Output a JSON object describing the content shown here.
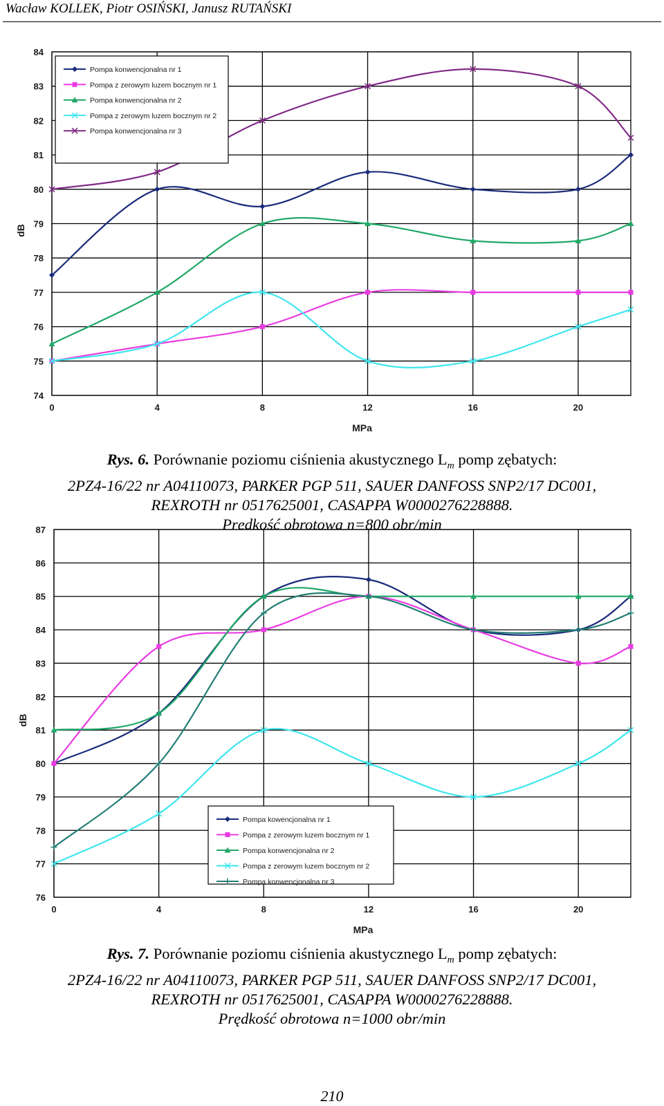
{
  "header": {
    "authors": "Wacław KOLLEK, Piotr OSIŃSKI, Janusz RUTAŃSKI"
  },
  "page_number": "210",
  "chart_data": [
    {
      "type": "line",
      "xlabel": "MPa",
      "ylabel": "dB",
      "x": [
        0,
        4,
        8,
        12,
        16,
        20,
        22
      ],
      "x_ticks": [
        0,
        4,
        8,
        12,
        16,
        20
      ],
      "xlim": [
        0,
        22
      ],
      "ylim": [
        74,
        84
      ],
      "y_ticks": [
        74,
        75,
        76,
        77,
        78,
        79,
        80,
        81,
        82,
        83,
        84
      ],
      "grid": true,
      "legend_position": "top-left",
      "series": [
        {
          "name": "Pompa konwencjonalna nr 1",
          "color": "#1a2a7a",
          "marker": "diamond",
          "values": [
            77.5,
            80,
            79.5,
            80.5,
            80,
            80,
            81
          ]
        },
        {
          "name": "Pompa z zerowym luzem bocznym nr 1",
          "color": "#e93be3",
          "marker": "square",
          "values": [
            75,
            75.5,
            76,
            77,
            77,
            77,
            77
          ]
        },
        {
          "name": "Pompa konwencjonalna nr 2",
          "color": "#1ea866",
          "marker": "triangle",
          "values": [
            75.5,
            77,
            79,
            79,
            78.5,
            78.5,
            79
          ]
        },
        {
          "name": "Pompa z zerowym luzem bocznym nr 2",
          "color": "#3ee6ee",
          "marker": "x",
          "values": [
            75,
            75.5,
            77,
            75,
            75,
            76,
            76.5
          ]
        },
        {
          "name": "Pompa konwencjonalna nr 3",
          "color": "#802a86",
          "marker": "x",
          "values": [
            80,
            80.5,
            82,
            83,
            83.5,
            83,
            81.5
          ]
        }
      ]
    },
    {
      "type": "line",
      "xlabel": "MPa",
      "ylabel": "dB",
      "x": [
        0,
        4,
        8,
        12,
        16,
        20,
        22
      ],
      "x_ticks": [
        0,
        4,
        8,
        12,
        16,
        20
      ],
      "xlim": [
        0,
        22
      ],
      "ylim": [
        76,
        87
      ],
      "y_ticks": [
        76,
        77,
        78,
        79,
        80,
        81,
        82,
        83,
        84,
        85,
        86,
        87
      ],
      "grid": true,
      "legend_position": "bottom-center",
      "series": [
        {
          "name": "Pompa kowencjonalna nr 1",
          "color": "#1a2a7a",
          "marker": "diamond",
          "values": [
            80,
            81.5,
            85,
            85.5,
            84,
            84,
            85
          ]
        },
        {
          "name": "Pompa z zerowym luzem bocznym nr 1",
          "color": "#e93be3",
          "marker": "square",
          "values": [
            80,
            83.5,
            84,
            85,
            84,
            83,
            83.5
          ]
        },
        {
          "name": "Pompa konwencjonalna nr 2",
          "color": "#1ea866",
          "marker": "triangle",
          "values": [
            81,
            81.5,
            85,
            85,
            85,
            85,
            85
          ]
        },
        {
          "name": "Pompa z zerowym luzem bocznym nr 2",
          "color": "#3ee6ee",
          "marker": "x",
          "values": [
            77,
            78.5,
            81,
            80,
            79,
            80,
            81
          ]
        },
        {
          "name": "Pompa konwencjonalna nr 3",
          "color": "#227e74",
          "marker": "plus",
          "values": [
            77.5,
            80,
            84.5,
            85,
            84,
            84,
            84.5
          ]
        }
      ]
    }
  ],
  "captions": [
    {
      "label": "Rys. 6.",
      "line1_prefix": "Porównanie poziomu ciśnienia akustycznego L",
      "line1_sub": "m",
      "line1_suffix": "pomp zębatych:",
      "line2": "2PZ4-16/22 nr A04110073, PARKER PGP 511, SAUER DANFOSS SNP2/17 DC001,",
      "line3": "REXROTH nr 0517625001, CASAPPA W0000276228888.",
      "line4": "Prędkość obrotowa n=800 obr/min"
    },
    {
      "label": "Rys. 7.",
      "line1_prefix": "Porównanie poziomu ciśnienia akustycznego L",
      "line1_sub": "m",
      "line1_suffix": "pomp zębatych:",
      "line2": "2PZ4-16/22 nr A04110073, PARKER PGP 511, SAUER DANFOSS SNP2/17 DC001,",
      "line3": "REXROTH nr 0517625001, CASAPPA W0000276228888.",
      "line4": "Prędkość obrotowa n=1000 obr/min"
    }
  ]
}
